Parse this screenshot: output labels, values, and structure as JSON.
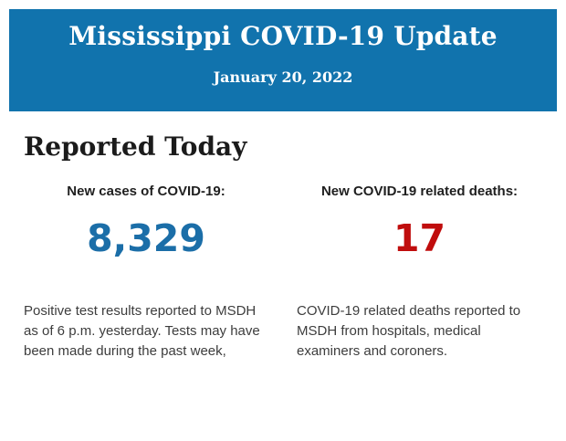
{
  "banner": {
    "title": "Mississippi COVID-19 Update",
    "date": "January 20, 2022",
    "bg_color": "#1173ad",
    "text_color": "#ffffff"
  },
  "section": {
    "heading": "Reported Today"
  },
  "stats": [
    {
      "label": "New cases of COVID-19:",
      "value": "8,329",
      "value_color": "#1b6ea8",
      "description": "Positive test results reported to MSDH as of 6 p.m. yesterday. Tests may have been made during the past week,"
    },
    {
      "label": "New COVID-19 related deaths:",
      "value": "17",
      "value_color": "#c00d0d",
      "description": "COVID-19 related deaths reported to MSDH from hospitals, medical examiners and coroners."
    }
  ]
}
